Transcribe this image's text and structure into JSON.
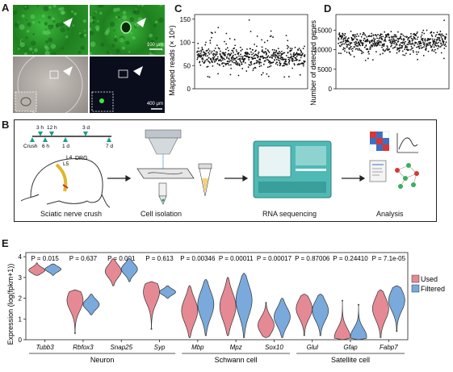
{
  "panel_labels": {
    "a": "A",
    "b": "B",
    "c": "C",
    "d": "D",
    "e": "E"
  },
  "panelA": {
    "scale_top": "100 μm",
    "scale_bottom": "400 μm"
  },
  "panelB": {
    "timeline": {
      "top_ticks": [
        "3 h",
        "12 h",
        "3 d"
      ],
      "bottom_ticks": [
        "Crush",
        "6 h",
        "1 d",
        "7 d"
      ]
    },
    "drg_labels": [
      "L4",
      "L5",
      "DRG"
    ],
    "steps": [
      "Sciatic nerve crush",
      "Cell isolation",
      "RNA sequencing",
      "Analysis"
    ]
  },
  "chart_data": [
    {
      "type": "scatter",
      "panel": "C",
      "ylabel": "Mapped reads (× 10⁶)",
      "yticks": [
        0,
        50,
        100,
        150
      ],
      "ylim": [
        0,
        160
      ],
      "summary": "~600 cells, most between 40 and 90 million reads, a few up to ~150"
    },
    {
      "type": "scatter",
      "panel": "D",
      "ylabel": "Number of detected genes",
      "yticks": [
        0,
        5000,
        10000,
        15000
      ],
      "ylim": [
        0,
        19000
      ],
      "summary": "~600 cells, mostly 9000–14500 genes, one outlier near 17500"
    },
    {
      "type": "violin",
      "panel": "E",
      "ylabel": "Expression (log(fpkm+1))",
      "yticks": [
        0,
        1,
        2,
        3,
        4
      ],
      "ylim": [
        0,
        4.2
      ],
      "legend": [
        "Used",
        "Filtered"
      ],
      "legend_colors": [
        "#e58a94",
        "#7aa9dc"
      ],
      "genes": [
        "Tubb3",
        "Rbfox3",
        "Snap25",
        "Syp",
        "Mbp",
        "Mpz",
        "Sox10",
        "Glul",
        "Gfap",
        "Fabp7"
      ],
      "pvalues": [
        "P = 0.015",
        "P = 0.637",
        "P = 0.001",
        "P = 0.613",
        "P = 0.00346",
        "P = 0.00011",
        "P = 0.00017",
        "P = 0.87006",
        "P = 0.24410",
        "P = 7.1e-05"
      ],
      "groups": [
        {
          "name": "Neuron",
          "genes": [
            "Tubb3",
            "Rbfox3",
            "Snap25",
            "Syp"
          ]
        },
        {
          "name": "Schwann cell",
          "genes": [
            "Mbp",
            "Mpz",
            "Sox10"
          ]
        },
        {
          "name": "Satellite cell",
          "genes": [
            "Glul",
            "Gfap",
            "Fabp7"
          ]
        }
      ],
      "violins": [
        {
          "gene": "Tubb3",
          "used": {
            "min": 3.1,
            "max": 3.7,
            "mode": 3.35
          },
          "filtered": {
            "min": 3.1,
            "max": 3.65,
            "mode": 3.4
          }
        },
        {
          "gene": "Rbfox3",
          "used": {
            "min": 0.3,
            "max": 2.4,
            "mode": 1.9
          },
          "filtered": {
            "min": 1.2,
            "max": 2.2,
            "mode": 1.7
          }
        },
        {
          "gene": "Snap25",
          "used": {
            "min": 2.6,
            "max": 3.9,
            "mode": 3.3
          },
          "filtered": {
            "min": 2.8,
            "max": 3.9,
            "mode": 3.4
          }
        },
        {
          "gene": "Syp",
          "used": {
            "min": 0.5,
            "max": 2.8,
            "mode": 2.3
          },
          "filtered": {
            "min": 2.0,
            "max": 2.6,
            "mode": 2.3
          }
        },
        {
          "gene": "Mbp",
          "used": {
            "min": 0.1,
            "max": 2.6,
            "mode": 1.4
          },
          "filtered": {
            "min": 0.2,
            "max": 2.9,
            "mode": 1.7
          }
        },
        {
          "gene": "Mpz",
          "used": {
            "min": 0.2,
            "max": 3.0,
            "mode": 1.6
          },
          "filtered": {
            "min": 0.1,
            "max": 3.2,
            "mode": 1.9
          }
        },
        {
          "gene": "Sox10",
          "used": {
            "min": 0.1,
            "max": 1.8,
            "mode": 0.7
          },
          "filtered": {
            "min": 0.1,
            "max": 2.0,
            "mode": 1.1
          }
        },
        {
          "gene": "Glul",
          "used": {
            "min": 0.2,
            "max": 2.2,
            "mode": 1.5
          },
          "filtered": {
            "min": 0.2,
            "max": 2.2,
            "mode": 1.4
          }
        },
        {
          "gene": "Gfap",
          "used": {
            "min": 0.0,
            "max": 1.9,
            "mode": 0.1
          },
          "filtered": {
            "min": 0.0,
            "max": 1.7,
            "mode": 0.15
          }
        },
        {
          "gene": "Fabp7",
          "used": {
            "min": 0.1,
            "max": 2.4,
            "mode": 1.5
          },
          "filtered": {
            "min": 0.4,
            "max": 2.6,
            "mode": 1.9
          }
        }
      ]
    }
  ]
}
